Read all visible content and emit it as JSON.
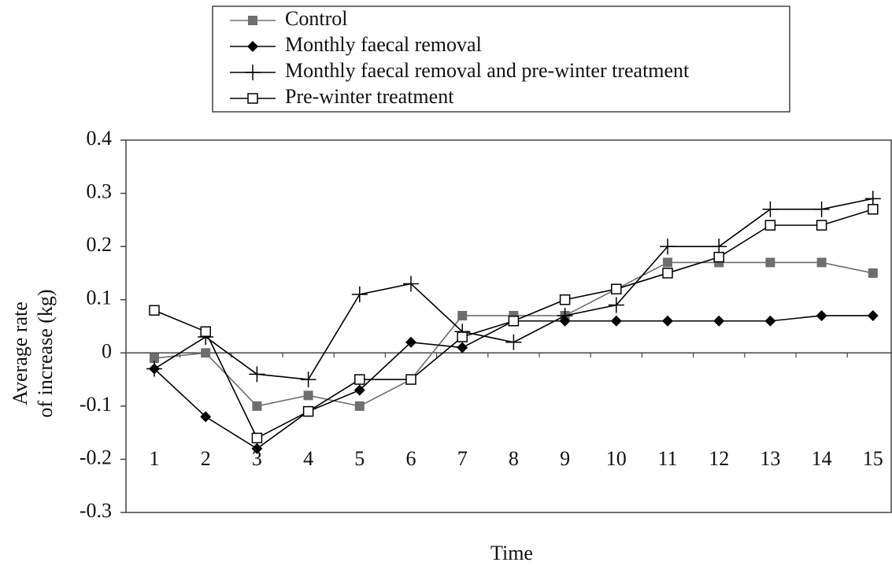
{
  "chart_data": {
    "type": "line",
    "x_label": "Time",
    "y_label": [
      "Average rate",
      "of increase (kg)"
    ],
    "categories": [
      "1",
      "2",
      "3",
      "4",
      "5",
      "6",
      "7",
      "8",
      "9",
      "10",
      "11",
      "12",
      "13",
      "14",
      "15"
    ],
    "series": [
      {
        "name": "Control",
        "color": "#6e6e6e",
        "marker": "square",
        "values": [
          -0.01,
          0.0,
          -0.1,
          -0.08,
          -0.1,
          -0.05,
          0.07,
          0.07,
          0.07,
          0.12,
          0.17,
          0.17,
          0.17,
          0.17,
          0.15
        ]
      },
      {
        "name": "Monthly faecal removal",
        "color": "#000000",
        "marker": "diamond",
        "values": [
          -0.03,
          -0.12,
          -0.18,
          -0.11,
          -0.07,
          0.02,
          0.01,
          0.06,
          0.06,
          0.06,
          0.06,
          0.06,
          0.06,
          0.07,
          0.07
        ]
      },
      {
        "name": "Monthly faecal removal and pre-winter treatment",
        "color": "#000000",
        "marker": "plus",
        "values": [
          -0.03,
          0.03,
          -0.04,
          -0.05,
          0.11,
          0.13,
          0.04,
          0.02,
          0.07,
          0.09,
          0.2,
          0.2,
          0.27,
          0.27,
          0.29
        ]
      },
      {
        "name": "Pre-winter treatment",
        "color": "#000000",
        "marker": "open-square",
        "values": [
          0.08,
          0.04,
          -0.16,
          -0.11,
          -0.05,
          -0.05,
          0.03,
          0.06,
          0.1,
          0.12,
          0.15,
          0.18,
          0.24,
          0.24,
          0.27
        ]
      }
    ],
    "ylim": [
      -0.3,
      0.4
    ],
    "yticks": [
      -0.3,
      -0.2,
      -0.1,
      0,
      0.1,
      0.2,
      0.3,
      0.4
    ],
    "legend": "top"
  }
}
